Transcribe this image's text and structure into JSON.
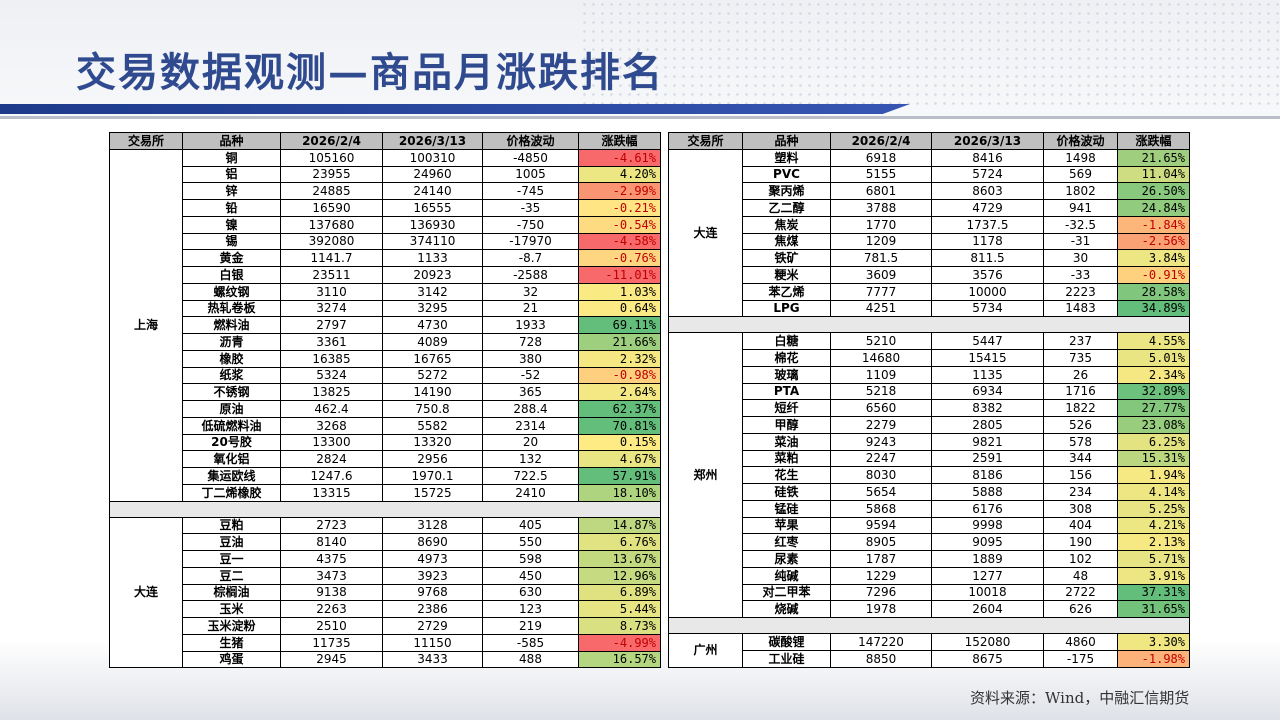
{
  "title": "交易数据观测—商品月涨跌排名",
  "source": "资料来源：Wind，中融汇信期货",
  "colors": {
    "up": "#63be7b",
    "mid": "#ffeb84",
    "down": "#f8696b",
    "header": "#bfbfbf",
    "title": "#2f4a8e"
  },
  "headers": [
    "交易所",
    "品种",
    "2026/2/4",
    "2026/3/13",
    "价格波动",
    "涨跌幅"
  ],
  "left": [
    {
      "exchange": "上海",
      "rows": [
        [
          "铜",
          "105160",
          "100310",
          "-4850",
          "-4.61%"
        ],
        [
          "铝",
          "23955",
          "24960",
          "1005",
          "4.20%"
        ],
        [
          "锌",
          "24885",
          "24140",
          "-745",
          "-2.99%"
        ],
        [
          "铅",
          "16590",
          "16555",
          "-35",
          "-0.21%"
        ],
        [
          "镍",
          "137680",
          "136930",
          "-750",
          "-0.54%"
        ],
        [
          "锡",
          "392080",
          "374110",
          "-17970",
          "-4.58%"
        ],
        [
          "黄金",
          "1141.7",
          "1133",
          "-8.7",
          "-0.76%"
        ],
        [
          "白银",
          "23511",
          "20923",
          "-2588",
          "-11.01%"
        ],
        [
          "螺纹钢",
          "3110",
          "3142",
          "32",
          "1.03%"
        ],
        [
          "热轧卷板",
          "3274",
          "3295",
          "21",
          "0.64%"
        ],
        [
          "燃料油",
          "2797",
          "4730",
          "1933",
          "69.11%"
        ],
        [
          "沥青",
          "3361",
          "4089",
          "728",
          "21.66%"
        ],
        [
          "橡胶",
          "16385",
          "16765",
          "380",
          "2.32%"
        ],
        [
          "纸浆",
          "5324",
          "5272",
          "-52",
          "-0.98%"
        ],
        [
          "不锈钢",
          "13825",
          "14190",
          "365",
          "2.64%"
        ],
        [
          "原油",
          "462.4",
          "750.8",
          "288.4",
          "62.37%"
        ],
        [
          "低硫燃料油",
          "3268",
          "5582",
          "2314",
          "70.81%"
        ],
        [
          "20号胶",
          "13300",
          "13320",
          "20",
          "0.15%"
        ],
        [
          "氧化铝",
          "2824",
          "2956",
          "132",
          "4.67%"
        ],
        [
          "集运欧线",
          "1247.6",
          "1970.1",
          "722.5",
          "57.91%"
        ],
        [
          "丁二烯橡胶",
          "13315",
          "15725",
          "2410",
          "18.10%"
        ]
      ]
    },
    {
      "exchange": "大连",
      "rows": [
        [
          "豆粕",
          "2723",
          "3128",
          "405",
          "14.87%"
        ],
        [
          "豆油",
          "8140",
          "8690",
          "550",
          "6.76%"
        ],
        [
          "豆一",
          "4375",
          "4973",
          "598",
          "13.67%"
        ],
        [
          "豆二",
          "3473",
          "3923",
          "450",
          "12.96%"
        ],
        [
          "棕榈油",
          "9138",
          "9768",
          "630",
          "6.89%"
        ],
        [
          "玉米",
          "2263",
          "2386",
          "123",
          "5.44%"
        ],
        [
          "玉米淀粉",
          "2510",
          "2729",
          "219",
          "8.73%"
        ],
        [
          "生猪",
          "11735",
          "11150",
          "-585",
          "-4.99%"
        ],
        [
          "鸡蛋",
          "2945",
          "3433",
          "488",
          "16.57%"
        ]
      ]
    }
  ],
  "right": [
    {
      "exchange": "大连",
      "rows": [
        [
          "塑料",
          "6918",
          "8416",
          "1498",
          "21.65%"
        ],
        [
          "PVC",
          "5155",
          "5724",
          "569",
          "11.04%"
        ],
        [
          "聚丙烯",
          "6801",
          "8603",
          "1802",
          "26.50%"
        ],
        [
          "乙二醇",
          "3788",
          "4729",
          "941",
          "24.84%"
        ],
        [
          "焦炭",
          "1770",
          "1737.5",
          "-32.5",
          "-1.84%"
        ],
        [
          "焦煤",
          "1209",
          "1178",
          "-31",
          "-2.56%"
        ],
        [
          "铁矿",
          "781.5",
          "811.5",
          "30",
          "3.84%"
        ],
        [
          "粳米",
          "3609",
          "3576",
          "-33",
          "-0.91%"
        ],
        [
          "苯乙烯",
          "7777",
          "10000",
          "2223",
          "28.58%"
        ],
        [
          "LPG",
          "4251",
          "5734",
          "1483",
          "34.89%"
        ]
      ]
    },
    {
      "exchange": "郑州",
      "rows": [
        [
          "白糖",
          "5210",
          "5447",
          "237",
          "4.55%"
        ],
        [
          "棉花",
          "14680",
          "15415",
          "735",
          "5.01%"
        ],
        [
          "玻璃",
          "1109",
          "1135",
          "26",
          "2.34%"
        ],
        [
          "PTA",
          "5218",
          "6934",
          "1716",
          "32.89%"
        ],
        [
          "短纤",
          "6560",
          "8382",
          "1822",
          "27.77%"
        ],
        [
          "甲醇",
          "2279",
          "2805",
          "526",
          "23.08%"
        ],
        [
          "菜油",
          "9243",
          "9821",
          "578",
          "6.25%"
        ],
        [
          "菜粕",
          "2247",
          "2591",
          "344",
          "15.31%"
        ],
        [
          "花生",
          "8030",
          "8186",
          "156",
          "1.94%"
        ],
        [
          "硅铁",
          "5654",
          "5888",
          "234",
          "4.14%"
        ],
        [
          "锰硅",
          "5868",
          "6176",
          "308",
          "5.25%"
        ],
        [
          "苹果",
          "9594",
          "9998",
          "404",
          "4.21%"
        ],
        [
          "红枣",
          "8905",
          "9095",
          "190",
          "2.13%"
        ],
        [
          "尿素",
          "1787",
          "1889",
          "102",
          "5.71%"
        ],
        [
          "纯碱",
          "1229",
          "1277",
          "48",
          "3.91%"
        ],
        [
          "对二甲苯",
          "7296",
          "10018",
          "2722",
          "37.31%"
        ],
        [
          "烧碱",
          "1978",
          "2604",
          "626",
          "31.65%"
        ]
      ]
    },
    {
      "exchange": "广州",
      "rows": [
        [
          "碳酸锂",
          "147220",
          "152080",
          "4860",
          "3.30%"
        ],
        [
          "工业硅",
          "8850",
          "8675",
          "-175",
          "-1.98%"
        ]
      ]
    }
  ]
}
